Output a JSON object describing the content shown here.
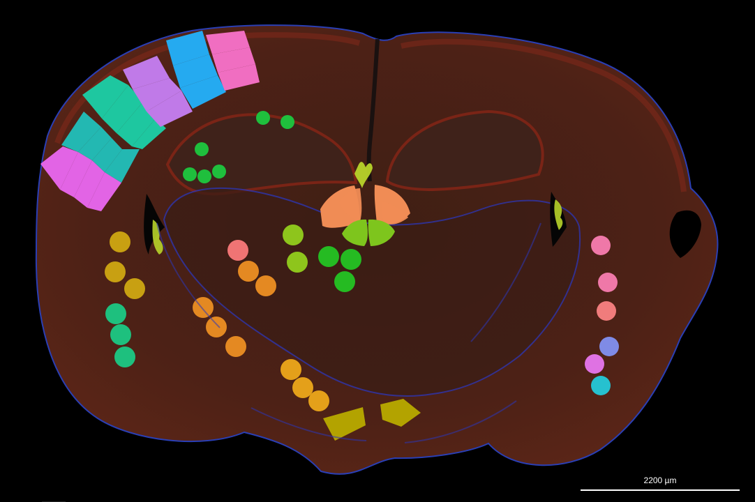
{
  "image": {
    "kind": "fluorescence-brain-coronal-section",
    "background_color": "#000000"
  },
  "scale_bar": {
    "label": "2200 µm",
    "color": "#ffffff"
  },
  "palette": {
    "tissue": "#4a1f12",
    "tissue_edge": "#5b2415",
    "cortex_red": "#8f2b1a",
    "nuclei_blue": "#2b36b8",
    "pink": "#e264e5",
    "magenta_light": "#d96ad9",
    "purple": "#c07ae8",
    "cyan_blue": "#25aaf0",
    "teal": "#1ec7a0",
    "turquoise": "#23b8b2",
    "green": "#1fbf3d",
    "yellow_green": "#95c81d",
    "olive": "#b3a300",
    "gold": "#c8a012",
    "orange": "#e18d1d",
    "salmon": "#f06b6b",
    "peach": "#f08c55",
    "lime": "#78c71f",
    "periwinkle": "#7f8be6"
  }
}
